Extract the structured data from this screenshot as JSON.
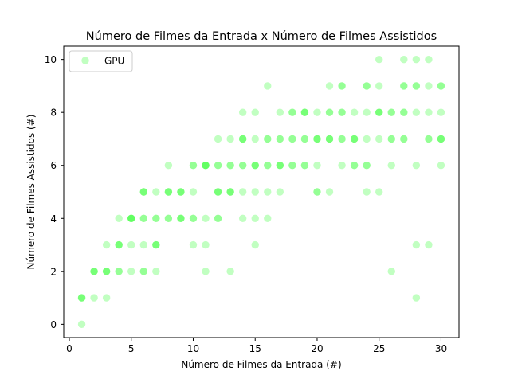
{
  "chart_data": {
    "type": "scatter",
    "title": "Número de Filmes da Entrada x Número de Filmes Assistidos",
    "xlabel": "Número de Filmes da Entrada (#)",
    "ylabel": "Número de Filmes Assistidos (#)",
    "xlim": [
      -0.45,
      31.45
    ],
    "ylim": [
      -0.5,
      10.5
    ],
    "xticks": [
      0,
      5,
      10,
      15,
      20,
      25,
      30
    ],
    "yticks": [
      0,
      2,
      4,
      6,
      8,
      10
    ],
    "legend": {
      "position": "top-left"
    },
    "grid": false,
    "series": [
      {
        "name": "GPU",
        "color": "#33ff33",
        "alpha": 0.3,
        "points": [
          [
            1,
            0
          ],
          [
            1,
            1
          ],
          [
            1,
            1
          ],
          [
            1,
            1
          ],
          [
            2,
            1
          ],
          [
            2,
            2
          ],
          [
            2,
            2
          ],
          [
            2,
            2
          ],
          [
            3,
            1
          ],
          [
            3,
            2
          ],
          [
            3,
            2
          ],
          [
            3,
            2
          ],
          [
            3,
            3
          ],
          [
            4,
            2
          ],
          [
            4,
            2
          ],
          [
            4,
            3
          ],
          [
            4,
            3
          ],
          [
            4,
            3
          ],
          [
            4,
            4
          ],
          [
            5,
            2
          ],
          [
            5,
            3
          ],
          [
            5,
            4
          ],
          [
            5,
            4
          ],
          [
            5,
            4
          ],
          [
            5,
            4
          ],
          [
            6,
            2
          ],
          [
            6,
            2
          ],
          [
            6,
            3
          ],
          [
            6,
            4
          ],
          [
            6,
            4
          ],
          [
            6,
            5
          ],
          [
            6,
            5
          ],
          [
            6,
            5
          ],
          [
            7,
            2
          ],
          [
            7,
            3
          ],
          [
            7,
            3
          ],
          [
            7,
            3
          ],
          [
            7,
            4
          ],
          [
            7,
            4
          ],
          [
            7,
            5
          ],
          [
            8,
            4
          ],
          [
            8,
            4
          ],
          [
            8,
            5
          ],
          [
            8,
            5
          ],
          [
            8,
            5
          ],
          [
            8,
            6
          ],
          [
            9,
            4
          ],
          [
            9,
            4
          ],
          [
            9,
            4
          ],
          [
            9,
            5
          ],
          [
            9,
            5
          ],
          [
            9,
            5
          ],
          [
            10,
            3
          ],
          [
            10,
            4
          ],
          [
            10,
            4
          ],
          [
            10,
            5
          ],
          [
            10,
            6
          ],
          [
            10,
            6
          ],
          [
            11,
            2
          ],
          [
            11,
            3
          ],
          [
            11,
            4
          ],
          [
            11,
            6
          ],
          [
            11,
            6
          ],
          [
            11,
            6
          ],
          [
            11,
            6
          ],
          [
            12,
            4
          ],
          [
            12,
            4
          ],
          [
            12,
            5
          ],
          [
            12,
            5
          ],
          [
            12,
            5
          ],
          [
            12,
            6
          ],
          [
            12,
            6
          ],
          [
            12,
            7
          ],
          [
            13,
            2
          ],
          [
            13,
            5
          ],
          [
            13,
            5
          ],
          [
            13,
            5
          ],
          [
            13,
            6
          ],
          [
            13,
            6
          ],
          [
            13,
            7
          ],
          [
            14,
            4
          ],
          [
            14,
            5
          ],
          [
            14,
            6
          ],
          [
            14,
            6
          ],
          [
            14,
            7
          ],
          [
            14,
            7
          ],
          [
            14,
            7
          ],
          [
            14,
            8
          ],
          [
            15,
            3
          ],
          [
            15,
            4
          ],
          [
            15,
            5
          ],
          [
            15,
            6
          ],
          [
            15,
            6
          ],
          [
            15,
            6
          ],
          [
            15,
            7
          ],
          [
            15,
            8
          ],
          [
            16,
            4
          ],
          [
            16,
            5
          ],
          [
            16,
            6
          ],
          [
            16,
            6
          ],
          [
            16,
            7
          ],
          [
            16,
            7
          ],
          [
            16,
            9
          ],
          [
            17,
            5
          ],
          [
            17,
            6
          ],
          [
            17,
            6
          ],
          [
            17,
            6
          ],
          [
            17,
            7
          ],
          [
            17,
            7
          ],
          [
            17,
            8
          ],
          [
            18,
            6
          ],
          [
            18,
            6
          ],
          [
            18,
            7
          ],
          [
            18,
            7
          ],
          [
            18,
            8
          ],
          [
            18,
            8
          ],
          [
            19,
            6
          ],
          [
            19,
            6
          ],
          [
            19,
            7
          ],
          [
            19,
            7
          ],
          [
            19,
            8
          ],
          [
            19,
            8
          ],
          [
            19,
            8
          ],
          [
            20,
            5
          ],
          [
            20,
            5
          ],
          [
            20,
            6
          ],
          [
            20,
            7
          ],
          [
            20,
            7
          ],
          [
            20,
            7
          ],
          [
            20,
            8
          ],
          [
            21,
            5
          ],
          [
            21,
            7
          ],
          [
            21,
            7
          ],
          [
            21,
            7
          ],
          [
            21,
            8
          ],
          [
            21,
            8
          ],
          [
            21,
            9
          ],
          [
            22,
            6
          ],
          [
            22,
            7
          ],
          [
            22,
            7
          ],
          [
            22,
            8
          ],
          [
            22,
            8
          ],
          [
            22,
            9
          ],
          [
            22,
            9
          ],
          [
            23,
            6
          ],
          [
            23,
            6
          ],
          [
            23,
            7
          ],
          [
            23,
            7
          ],
          [
            23,
            7
          ],
          [
            23,
            8
          ],
          [
            24,
            5
          ],
          [
            24,
            6
          ],
          [
            24,
            6
          ],
          [
            24,
            7
          ],
          [
            24,
            8
          ],
          [
            24,
            9
          ],
          [
            24,
            9
          ],
          [
            25,
            5
          ],
          [
            25,
            7
          ],
          [
            25,
            8
          ],
          [
            25,
            8
          ],
          [
            25,
            8
          ],
          [
            25,
            9
          ],
          [
            25,
            10
          ],
          [
            26,
            2
          ],
          [
            26,
            6
          ],
          [
            26,
            7
          ],
          [
            26,
            7
          ],
          [
            26,
            8
          ],
          [
            26,
            8
          ],
          [
            27,
            7
          ],
          [
            27,
            7
          ],
          [
            27,
            8
          ],
          [
            27,
            8
          ],
          [
            27,
            9
          ],
          [
            27,
            9
          ],
          [
            27,
            10
          ],
          [
            28,
            1
          ],
          [
            28,
            3
          ],
          [
            28,
            6
          ],
          [
            28,
            8
          ],
          [
            28,
            9
          ],
          [
            28,
            9
          ],
          [
            28,
            10
          ],
          [
            29,
            3
          ],
          [
            29,
            7
          ],
          [
            29,
            7
          ],
          [
            29,
            8
          ],
          [
            29,
            9
          ],
          [
            29,
            10
          ],
          [
            30,
            6
          ],
          [
            30,
            7
          ],
          [
            30,
            7
          ],
          [
            30,
            7
          ],
          [
            30,
            8
          ],
          [
            30,
            9
          ],
          [
            30,
            9
          ]
        ]
      }
    ]
  }
}
